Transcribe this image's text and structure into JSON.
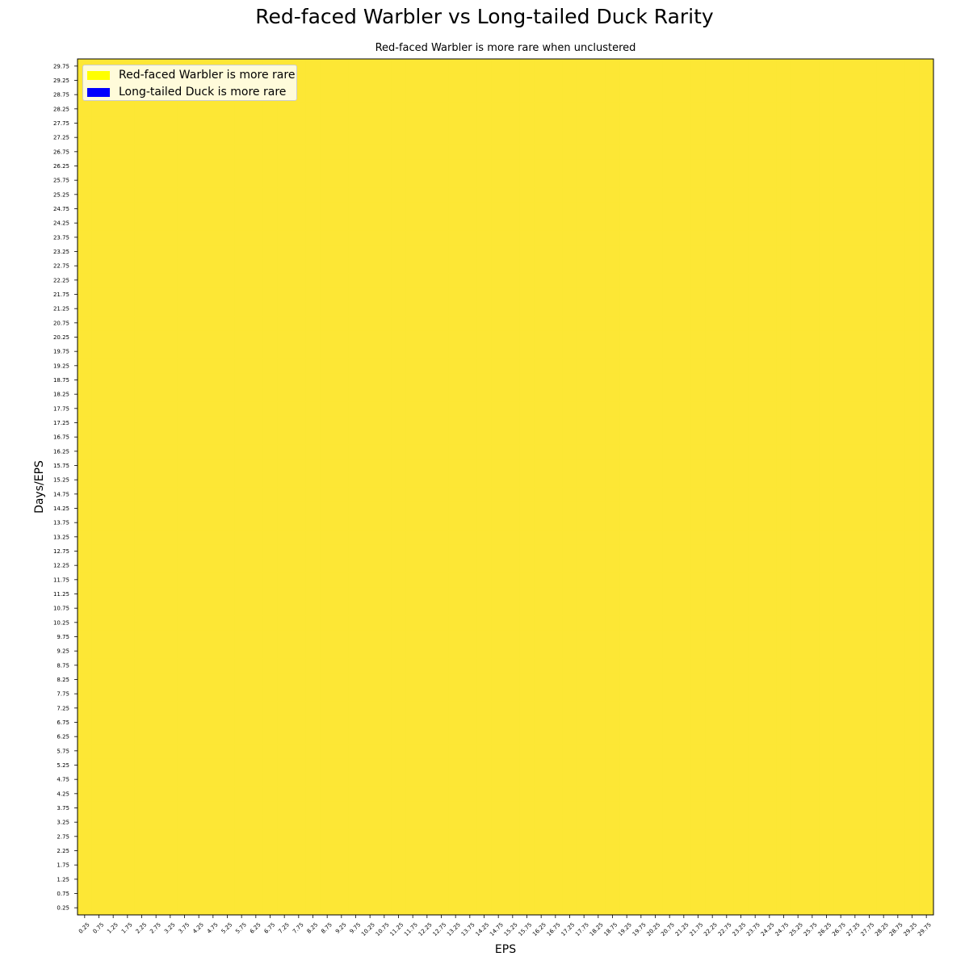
{
  "chart_data": {
    "type": "heatmap",
    "title": "Red-faced Warbler vs Long-tailed Duck Rarity",
    "subtitle": "Red-faced Warbler is more rare when unclustered",
    "xlabel": "EPS",
    "ylabel": "Days/EPS",
    "x": [
      0.25,
      0.75,
      1.25,
      1.75,
      2.25,
      2.75,
      3.25,
      3.75,
      4.25,
      4.75,
      5.25,
      5.75,
      6.25,
      6.75,
      7.25,
      7.75,
      8.25,
      8.75,
      9.25,
      9.75,
      10.25,
      10.75,
      11.25,
      11.75,
      12.25,
      12.75,
      13.25,
      13.75,
      14.25,
      14.75,
      15.25,
      15.75,
      16.25,
      16.75,
      17.25,
      17.75,
      18.25,
      18.75,
      19.25,
      19.75,
      20.25,
      20.75,
      21.25,
      21.75,
      22.25,
      22.75,
      23.25,
      23.75,
      24.25,
      24.75,
      25.25,
      25.75,
      26.25,
      26.75,
      27.25,
      27.75,
      28.25,
      28.75,
      29.25,
      29.75
    ],
    "y": [
      0.25,
      0.75,
      1.25,
      1.75,
      2.25,
      2.75,
      3.25,
      3.75,
      4.25,
      4.75,
      5.25,
      5.75,
      6.25,
      6.75,
      7.25,
      7.75,
      8.25,
      8.75,
      9.25,
      9.75,
      10.25,
      10.75,
      11.25,
      11.75,
      12.25,
      12.75,
      13.25,
      13.75,
      14.25,
      14.75,
      15.25,
      15.75,
      16.25,
      16.75,
      17.25,
      17.75,
      18.25,
      18.75,
      19.25,
      19.75,
      20.25,
      20.75,
      21.25,
      21.75,
      22.25,
      22.75,
      23.25,
      23.75,
      24.25,
      24.75,
      25.25,
      25.75,
      26.25,
      26.75,
      27.25,
      27.75,
      28.25,
      28.75,
      29.25,
      29.75
    ],
    "x_tick_labels": [
      "0.25",
      "0.75",
      "1.25",
      "1.75",
      "2.25",
      "2.75",
      "3.25",
      "3.75",
      "4.25",
      "4.75",
      "5.25",
      "5.75",
      "6.25",
      "6.75",
      "7.25",
      "7.75",
      "8.25",
      "8.75",
      "9.25",
      "9.75",
      "10.25",
      "10.75",
      "11.25",
      "11.75",
      "12.25",
      "12.75",
      "13.25",
      "13.75",
      "14.25",
      "14.75",
      "15.25",
      "15.75",
      "16.25",
      "16.75",
      "17.25",
      "17.75",
      "18.25",
      "18.75",
      "19.25",
      "19.75",
      "20.25",
      "20.75",
      "21.25",
      "21.75",
      "22.25",
      "22.75",
      "23.25",
      "23.75",
      "24.25",
      "24.75",
      "25.25",
      "25.75",
      "26.25",
      "26.75",
      "27.25",
      "27.75",
      "28.25",
      "28.75",
      "29.25",
      "29.75"
    ],
    "y_tick_labels": [
      "0.25",
      "0.75",
      "1.25",
      "1.75",
      "2.25",
      "2.75",
      "3.25",
      "3.75",
      "4.25",
      "4.75",
      "5.25",
      "5.75",
      "6.25",
      "6.75",
      "7.25",
      "7.75",
      "8.25",
      "8.75",
      "9.25",
      "9.75",
      "10.25",
      "10.75",
      "11.25",
      "11.75",
      "12.25",
      "12.75",
      "13.25",
      "13.75",
      "14.25",
      "14.75",
      "15.25",
      "15.75",
      "16.25",
      "16.75",
      "17.25",
      "17.75",
      "18.25",
      "18.75",
      "19.25",
      "19.75",
      "20.25",
      "20.75",
      "21.25",
      "21.75",
      "22.25",
      "22.75",
      "23.25",
      "23.75",
      "24.25",
      "24.75",
      "25.25",
      "25.75",
      "26.25",
      "26.75",
      "27.25",
      "27.75",
      "28.25",
      "28.75",
      "29.25",
      "29.75"
    ],
    "uniform_cell_value": "Red-faced Warbler is more rare",
    "cell_color": "#fde735",
    "legend": {
      "placement": "top-left",
      "entries": [
        {
          "label": "Red-faced Warbler is more rare",
          "color": "#ffff00"
        },
        {
          "label": "Long-tailed Duck is more rare",
          "color": "#0000ff"
        }
      ]
    },
    "grid": false
  }
}
